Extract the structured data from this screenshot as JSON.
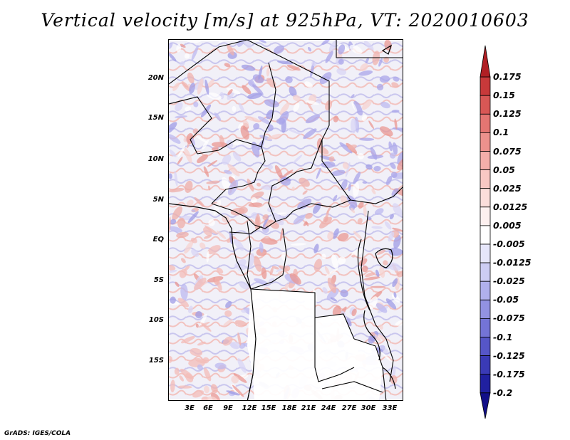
{
  "title": "Vertical velocity [m/s] at 925hPa, VT: 2020010603",
  "credit": "GrADS: IGES/COLA",
  "lat_labels": [
    "20N",
    "15N",
    "10N",
    "5N",
    "EQ",
    "5S",
    "10S",
    "15S"
  ],
  "lon_labels": [
    "3E",
    "6E",
    "9E",
    "12E",
    "15E",
    "18E",
    "21E",
    "24E",
    "27E",
    "30E",
    "33E"
  ],
  "colorbar": {
    "labels": [
      "0.175",
      "0.15",
      "0.125",
      "0.1",
      "0.075",
      "0.05",
      "0.025",
      "0.0125",
      "0.005",
      "-0.005",
      "-0.0125",
      "-0.025",
      "-0.05",
      "-0.075",
      "-0.1",
      "-0.125",
      "-0.175",
      "-0.2"
    ],
    "colors": [
      "#b01f24",
      "#c8393a",
      "#d85755",
      "#e47572",
      "#ec918d",
      "#f3aeaa",
      "#f8c8c4",
      "#fbdedb",
      "#fdf0ef",
      "#ffffff",
      "#e6e6fa",
      "#cdcdf4",
      "#b0b0ec",
      "#9292e2",
      "#7474d6",
      "#5656c8",
      "#3a3ab6",
      "#2020a0",
      "#120f88"
    ]
  },
  "map": {
    "lon_range": [
      0,
      35
    ],
    "lat_range": [
      -20,
      25
    ]
  }
}
